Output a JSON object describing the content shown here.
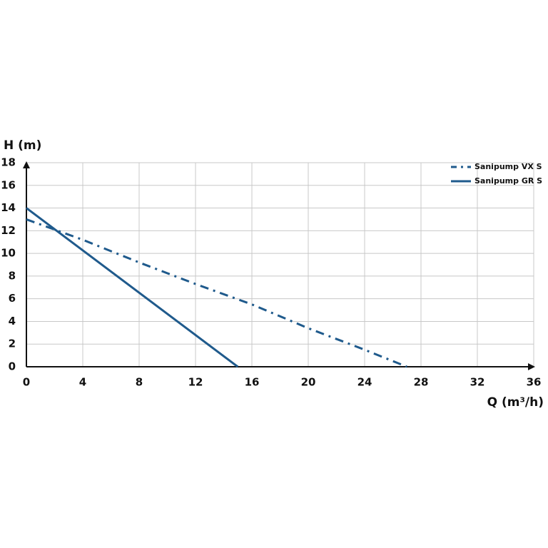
{
  "chart_data": {
    "type": "line",
    "y_label": "H (m)",
    "x_label": "Q (m³/h)",
    "series": [
      {
        "name": "Sanipump VX S",
        "color": "#1f5a8c",
        "style": "dashdot",
        "x": [
          0,
          4,
          8,
          12,
          16,
          20,
          24,
          27
        ],
        "values": [
          13,
          11.2,
          9.2,
          7.3,
          5.5,
          3.4,
          1.5,
          0
        ]
      },
      {
        "name": "Sanipump GR S",
        "color": "#1f5a8c",
        "style": "solid",
        "x": [
          0,
          15
        ],
        "values": [
          14,
          0
        ]
      }
    ],
    "xlim": [
      0,
      36
    ],
    "xticks": [
      0,
      4,
      8,
      12,
      16,
      20,
      24,
      28,
      32,
      36
    ],
    "ylim": [
      0,
      18
    ],
    "yticks": [
      0,
      2,
      4,
      6,
      8,
      10,
      12,
      14,
      16,
      18
    ],
    "grid": true,
    "legend": "upper right"
  }
}
